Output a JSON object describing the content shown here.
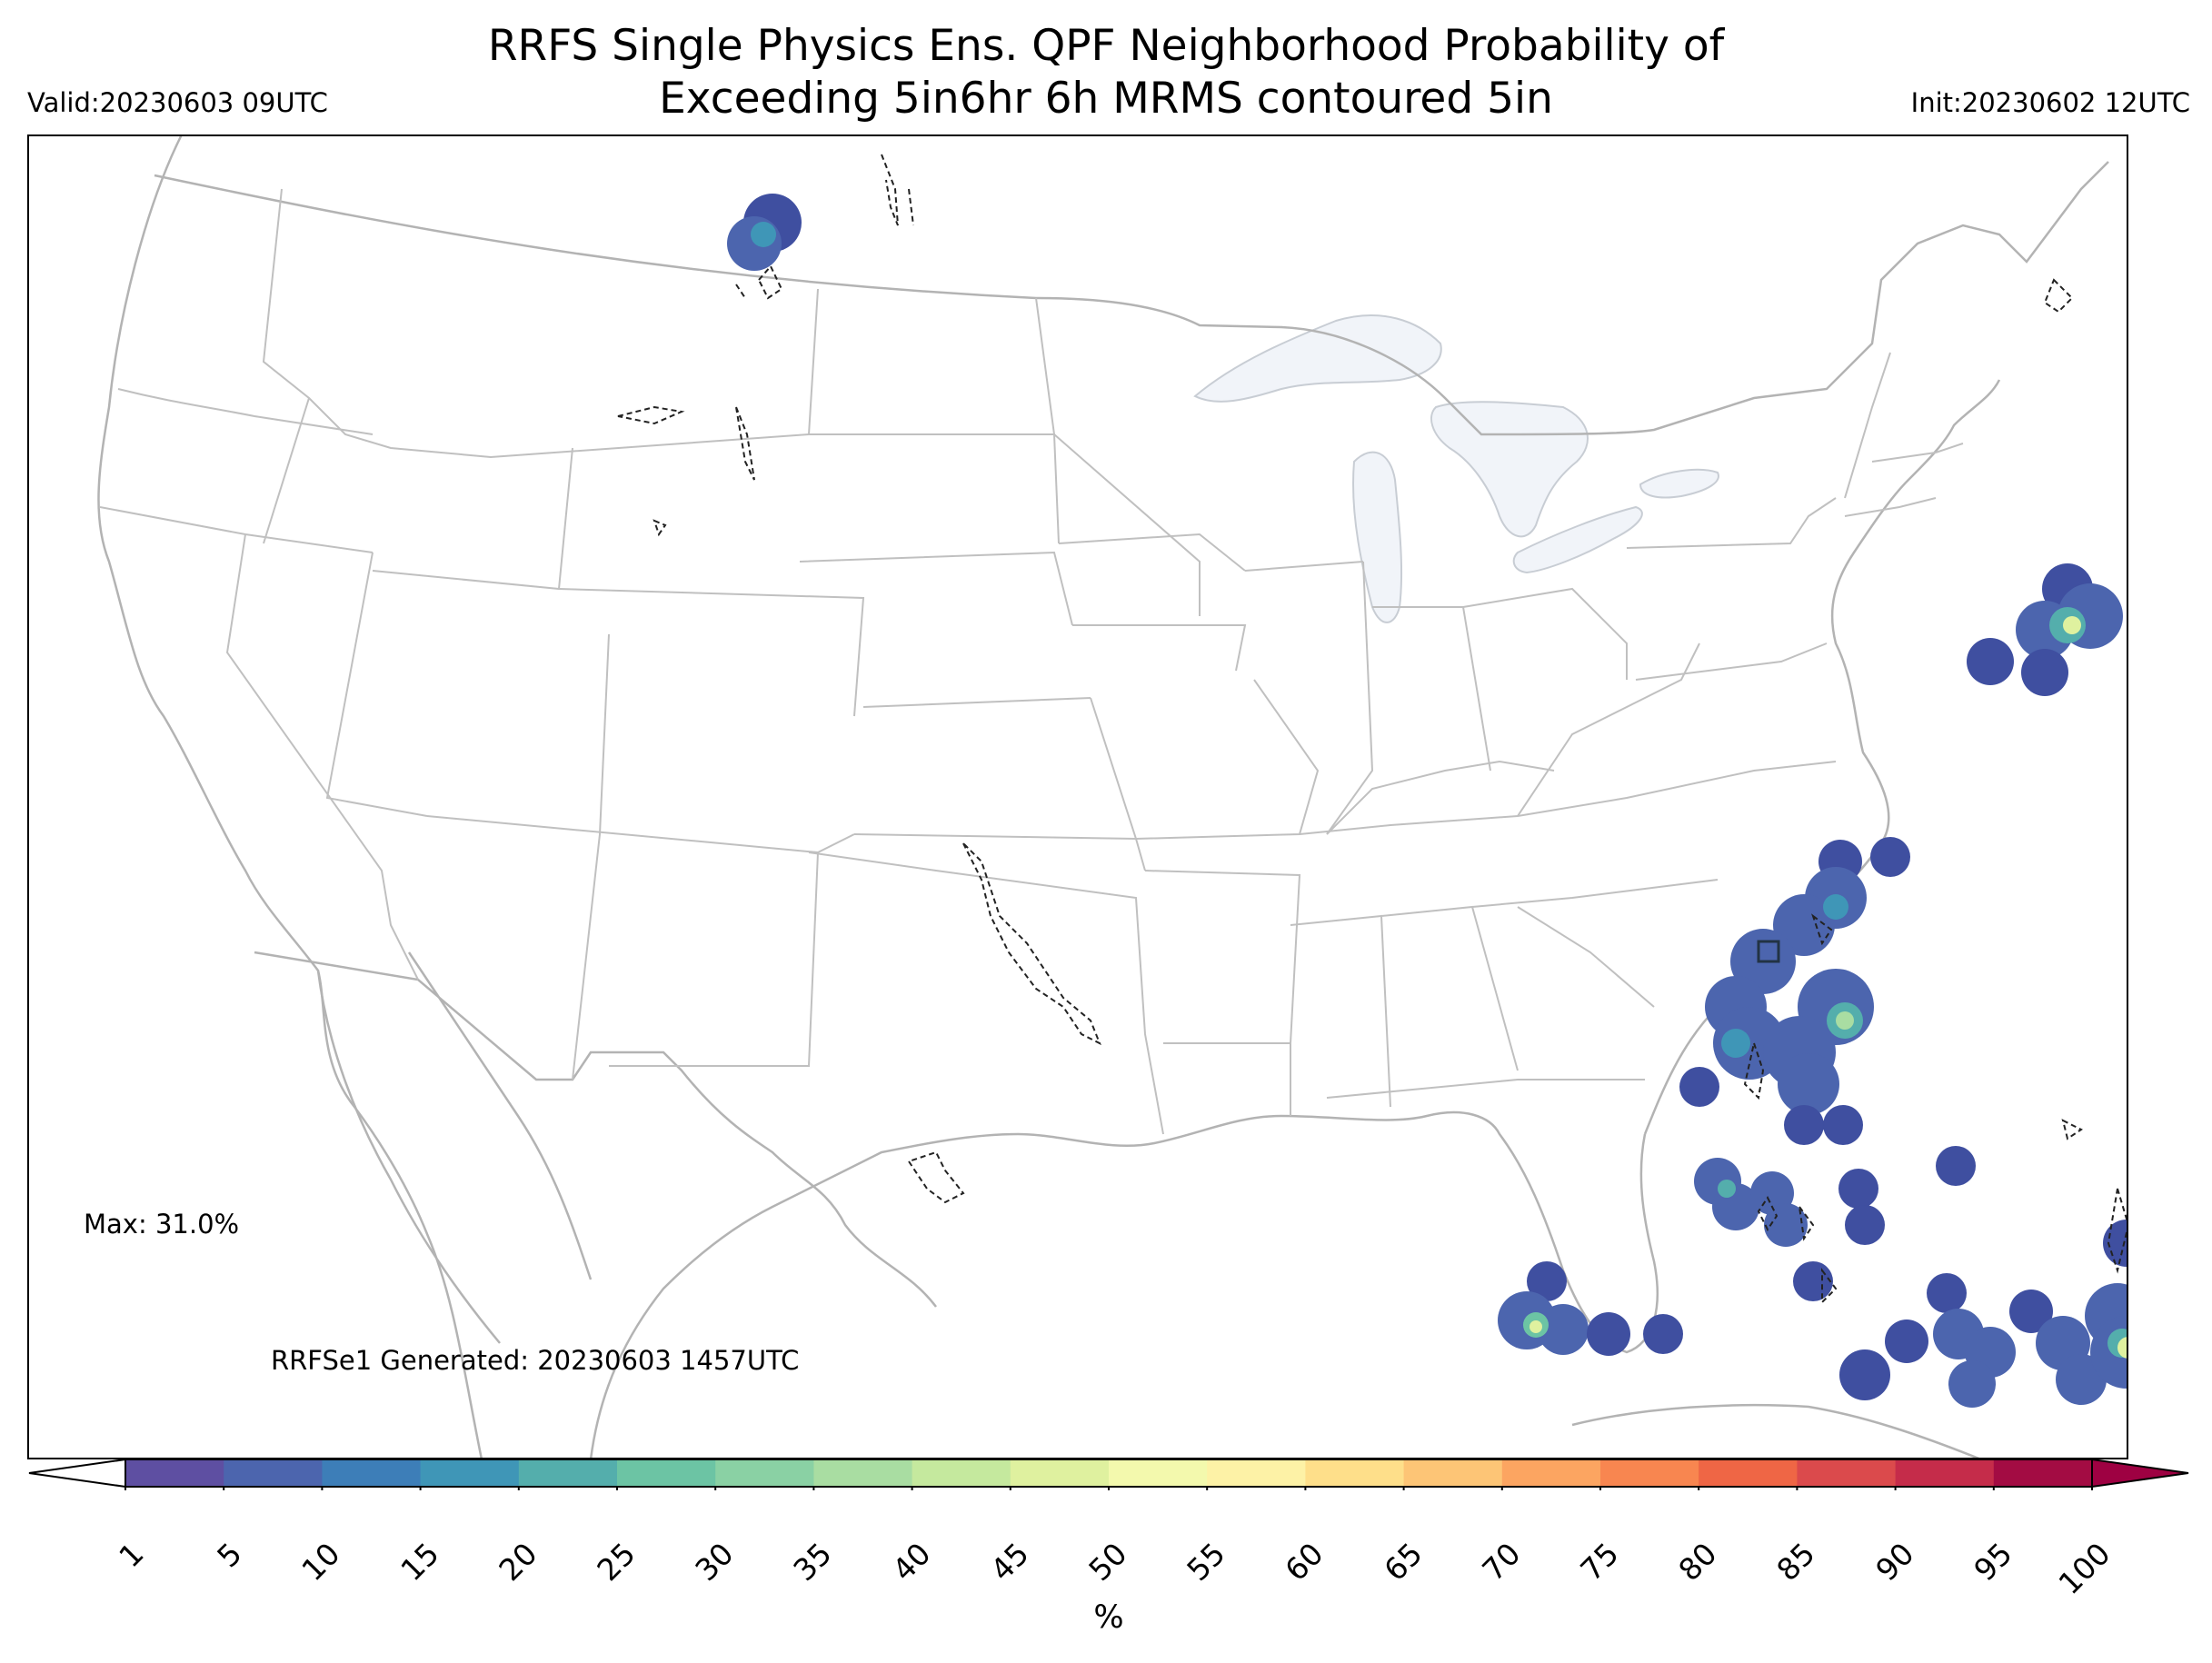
{
  "header": {
    "title_line1": "RRFS Single Physics Ens. QPF Neighborhood Probability of",
    "title_line2": "Exceeding 5in6hr 6h MRMS contoured 5in",
    "valid": "Valid:20230603 09UTC",
    "init": "Init:20230602 12UTC"
  },
  "annotations": {
    "max": "Max: 31.0%",
    "generated": "RRFSe1 Generated: 20230603 1457UTC"
  },
  "colorbar": {
    "unit": "%",
    "ticks": [
      "1",
      "5",
      "10",
      "15",
      "20",
      "25",
      "30",
      "35",
      "40",
      "45",
      "50",
      "55",
      "60",
      "65",
      "70",
      "75",
      "80",
      "85",
      "90",
      "95",
      "100"
    ],
    "colors": [
      "#5e4fa2",
      "#4c65ae",
      "#3d7eb8",
      "#3f96b7",
      "#54aeac",
      "#6cc4a4",
      "#8ad1a4",
      "#a9dda2",
      "#c5e99e",
      "#dff19f",
      "#f3f9ad",
      "#fdf2a6",
      "#fedf8a",
      "#fdc576",
      "#fca561",
      "#f88650",
      "#ef6645",
      "#db4a4c",
      "#c52c4a",
      "#a30c43"
    ],
    "under_color": "#ffffff",
    "over_color": "#9e0142"
  },
  "map_colors": {
    "border": "#b3b3b3",
    "lake_fill": "#f2f5fa",
    "mrms_contour": "#222222"
  }
}
